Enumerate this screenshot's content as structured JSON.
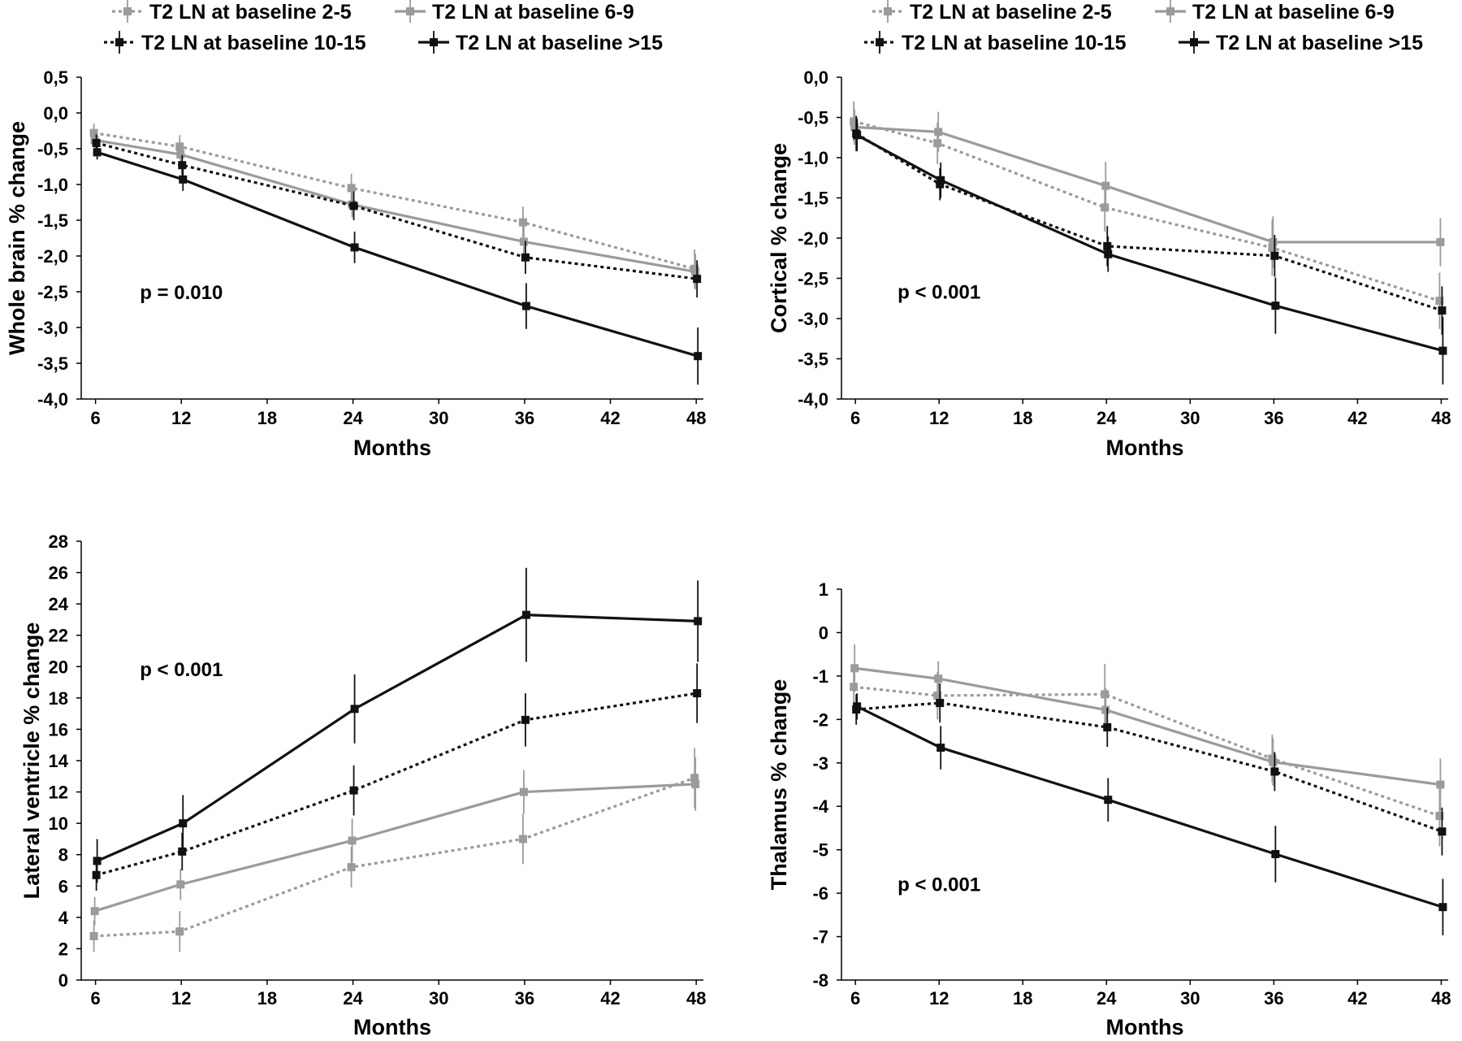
{
  "chart_data": [
    {
      "type": "line",
      "xlabel": "Months",
      "ylabel": "Whole brain % change",
      "xticks": [
        "6",
        "12",
        "18",
        "24",
        "30",
        "36",
        "42",
        "48"
      ],
      "yticks": [
        "0,5",
        "0,0",
        "-0,5",
        "-1,0",
        "-1,5",
        "-2,0",
        "-2,5",
        "-3,0",
        "-3,5",
        "-4,0"
      ],
      "xlim": [
        5,
        48.5
      ],
      "ylim": [
        -4.0,
        0.5
      ],
      "annotation": "p = 0.010",
      "annotation_pos": [
        12,
        -2.6
      ],
      "legend": [
        {
          "label": "T2 LN at baseline 2-5"
        },
        {
          "label": "T2 LN at baseline 6-9"
        },
        {
          "label": "T2 LN at baseline 10-15"
        },
        {
          "label": "T2 LN at baseline >15"
        }
      ],
      "x": [
        6,
        12,
        24,
        36,
        48
      ],
      "series": [
        {
          "color": "#9b9b9b",
          "dash": true,
          "values": [
            -0.28,
            -0.47,
            -1.05,
            -1.53,
            -2.18
          ],
          "errors": [
            0.13,
            0.16,
            0.2,
            0.22,
            0.27
          ]
        },
        {
          "color": "#9b9b9b",
          "dash": false,
          "values": [
            -0.38,
            -0.58,
            -1.28,
            -1.8,
            -2.22
          ],
          "errors": [
            0.12,
            0.14,
            0.18,
            0.22,
            0.25
          ]
        },
        {
          "color": "#111111",
          "dash": true,
          "values": [
            -0.42,
            -0.73,
            -1.3,
            -2.02,
            -2.32
          ],
          "errors": [
            0.12,
            0.14,
            0.2,
            0.23,
            0.26
          ]
        },
        {
          "color": "#111111",
          "dash": false,
          "values": [
            -0.55,
            -0.93,
            -1.88,
            -2.7,
            -3.4
          ],
          "errors": [
            0.1,
            0.16,
            0.22,
            0.32,
            0.4
          ]
        }
      ]
    },
    {
      "type": "line",
      "xlabel": "Months",
      "ylabel": "Cortical % change",
      "xticks": [
        "6",
        "12",
        "18",
        "24",
        "30",
        "36",
        "42",
        "48"
      ],
      "yticks": [
        "0,0",
        "-0,5",
        "-1,0",
        "-1,5",
        "-2,0",
        "-2,5",
        "-3,0",
        "-3,5",
        "-4,0"
      ],
      "xlim": [
        5,
        48.5
      ],
      "ylim": [
        -4.0,
        0.0
      ],
      "annotation": "p < 0.001",
      "annotation_pos": [
        12,
        -2.75
      ],
      "legend": [
        {
          "label": "T2 LN at baseline 2-5"
        },
        {
          "label": "T2 LN at baseline 6-9"
        },
        {
          "label": "T2 LN at baseline 10-15"
        },
        {
          "label": "T2 LN at baseline >15"
        }
      ],
      "x": [
        6,
        12,
        24,
        36,
        48
      ],
      "series": [
        {
          "color": "#9b9b9b",
          "dash": true,
          "values": [
            -0.55,
            -0.82,
            -1.62,
            -2.12,
            -2.78
          ],
          "errors": [
            0.25,
            0.26,
            0.3,
            0.35,
            0.35
          ]
        },
        {
          "color": "#9b9b9b",
          "dash": false,
          "values": [
            -0.62,
            -0.68,
            -1.35,
            -2.05,
            -2.05
          ],
          "errors": [
            0.22,
            0.25,
            0.3,
            0.32,
            0.3
          ]
        },
        {
          "color": "#111111",
          "dash": true,
          "values": [
            -0.7,
            -1.33,
            -2.1,
            -2.22,
            -2.9
          ],
          "errors": [
            0.22,
            0.2,
            0.25,
            0.26,
            0.3
          ]
        },
        {
          "color": "#111111",
          "dash": false,
          "values": [
            -0.72,
            -1.28,
            -2.2,
            -2.84,
            -3.4
          ],
          "errors": [
            0.2,
            0.22,
            0.22,
            0.35,
            0.42
          ]
        }
      ]
    },
    {
      "type": "line",
      "xlabel": "Months",
      "ylabel": "Lateral ventricle % change",
      "xticks": [
        "6",
        "12",
        "18",
        "24",
        "30",
        "36",
        "42",
        "48"
      ],
      "yticks": [
        "28",
        "26",
        "24",
        "22",
        "20",
        "18",
        "16",
        "14",
        "12",
        "10",
        "8",
        "6",
        "4",
        "2",
        "0"
      ],
      "xlim": [
        5,
        48.5
      ],
      "ylim": [
        0,
        28
      ],
      "annotation": "p < 0.001",
      "annotation_pos": [
        12,
        19.4
      ],
      "x": [
        6,
        12,
        24,
        36,
        48
      ],
      "series": [
        {
          "color": "#9b9b9b",
          "dash": true,
          "values": [
            2.8,
            3.1,
            7.2,
            9.0,
            12.9
          ],
          "errors": [
            1.0,
            1.3,
            1.3,
            1.6,
            1.9
          ]
        },
        {
          "color": "#9b9b9b",
          "dash": false,
          "values": [
            4.4,
            6.1,
            8.9,
            12.0,
            12.5
          ],
          "errors": [
            0.9,
            1.0,
            1.4,
            1.4,
            1.7
          ]
        },
        {
          "color": "#111111",
          "dash": true,
          "values": [
            6.7,
            8.2,
            12.1,
            16.6,
            18.3
          ],
          "errors": [
            1.0,
            1.2,
            1.6,
            1.7,
            1.9
          ]
        },
        {
          "color": "#111111",
          "dash": false,
          "values": [
            7.6,
            10.0,
            17.3,
            23.3,
            22.9
          ],
          "errors": [
            1.4,
            1.8,
            2.2,
            3.0,
            2.6
          ]
        }
      ]
    },
    {
      "type": "line",
      "xlabel": "Months",
      "ylabel": "Thalamus % change",
      "xticks": [
        "6",
        "12",
        "18",
        "24",
        "30",
        "36",
        "42",
        "48"
      ],
      "yticks": [
        "1",
        "0",
        "-1",
        "-2",
        "-3",
        "-4",
        "-5",
        "-6",
        "-7",
        "-8"
      ],
      "xlim": [
        5,
        48.5
      ],
      "ylim": [
        -8,
        1
      ],
      "annotation": "p < 0.001",
      "annotation_pos": [
        12,
        -5.95
      ],
      "x": [
        6,
        12,
        24,
        36,
        48
      ],
      "series": [
        {
          "color": "#9b9b9b",
          "dash": true,
          "values": [
            -1.25,
            -1.45,
            -1.42,
            -2.9,
            -4.22
          ],
          "errors": [
            0.5,
            0.55,
            0.7,
            0.55,
            0.7
          ]
        },
        {
          "color": "#9b9b9b",
          "dash": false,
          "values": [
            -0.82,
            -1.06,
            -1.78,
            -2.98,
            -3.5
          ],
          "errors": [
            0.55,
            0.4,
            0.5,
            0.55,
            0.6
          ]
        },
        {
          "color": "#111111",
          "dash": true,
          "values": [
            -1.77,
            -1.62,
            -2.18,
            -3.2,
            -4.58
          ],
          "errors": [
            0.35,
            0.45,
            0.45,
            0.45,
            0.55
          ]
        },
        {
          "color": "#111111",
          "dash": false,
          "values": [
            -1.7,
            -2.65,
            -3.85,
            -5.1,
            -6.32
          ],
          "errors": [
            0.3,
            0.5,
            0.5,
            0.65,
            0.65
          ]
        }
      ]
    }
  ]
}
